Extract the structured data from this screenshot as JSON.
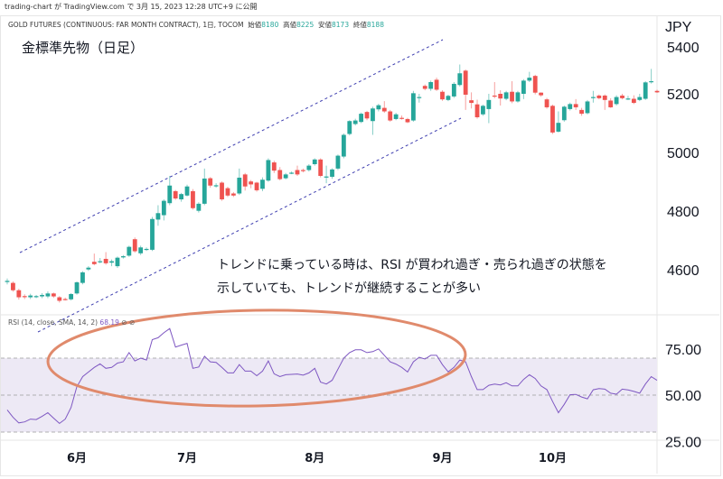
{
  "published": "trading-chart が TradingView.com で 3月 15, 2023 12:28 UTC+9 に公開",
  "symbol": {
    "name": "GOLD FUTURES (CONTINUOUS: FAR MONTH CONTRACT), 1日, TOCOM",
    "open_label": "始値",
    "open": "8180",
    "high_label": "高値",
    "high": "8225",
    "low_label": "安値",
    "low": "8173",
    "close_label": "終値",
    "close": "8188"
  },
  "title": "金標準先物（日足）",
  "annotation": {
    "line1": "トレンドに乗っている時は、RSI が買われ過ぎ・売られ過ぎの状態を",
    "line2": "示していても、トレンドが継続することが多い"
  },
  "rsi_label": {
    "text": "RSI (14, close, SMA, 14, 2)",
    "value": "68.19",
    "icons": "⊘ ⊘"
  },
  "colors": {
    "up": "#26a69a",
    "down": "#ef5350",
    "rsi": "#7e57c2",
    "band": "#ede9f5",
    "trendline": "#3f3fb0",
    "ellipse": "#e08a6c"
  },
  "chart_data": [
    {
      "type": "candlestick",
      "title": "金標準先物（日足）",
      "currency": "JPY",
      "y_ticks": [
        "5400",
        "5200",
        "5000",
        "4800",
        "4600"
      ],
      "ylim": [
        4480,
        5400
      ],
      "x_ticks": [
        "6月",
        "7月",
        "8月",
        "9月",
        "10月"
      ],
      "x_tick_candle_index": [
        12,
        31,
        53,
        75,
        94
      ],
      "candles_ohlc": [
        [
          4558,
          4570,
          4550,
          4562
        ],
        [
          4555,
          4560,
          4525,
          4530
        ],
        [
          4530,
          4535,
          4498,
          4506
        ],
        [
          4510,
          4516,
          4500,
          4508
        ],
        [
          4506,
          4518,
          4500,
          4512
        ],
        [
          4509,
          4514,
          4503,
          4510
        ],
        [
          4509,
          4520,
          4503,
          4514
        ],
        [
          4509,
          4526,
          4503,
          4519
        ],
        [
          4519,
          4522,
          4504,
          4509
        ],
        [
          4506,
          4510,
          4488,
          4494
        ],
        [
          4500,
          4505,
          4495,
          4499
        ],
        [
          4499,
          4520,
          4495,
          4517
        ],
        [
          4519,
          4560,
          4515,
          4557
        ],
        [
          4555,
          4595,
          4550,
          4591
        ],
        [
          4601,
          4612,
          4596,
          4607
        ],
        [
          4627,
          4655,
          4615,
          4619
        ],
        [
          4628,
          4640,
          4622,
          4629
        ],
        [
          4637,
          4660,
          4617,
          4622
        ],
        [
          4624,
          4635,
          4612,
          4629
        ],
        [
          4612,
          4645,
          4606,
          4641
        ],
        [
          4642,
          4650,
          4638,
          4646
        ],
        [
          4648,
          4682,
          4644,
          4678
        ],
        [
          4704,
          4710,
          4658,
          4663
        ],
        [
          4656,
          4682,
          4650,
          4676
        ],
        [
          4670,
          4676,
          4664,
          4671
        ],
        [
          4668,
          4780,
          4664,
          4773
        ],
        [
          4771,
          4820,
          4750,
          4793
        ],
        [
          4786,
          4840,
          4768,
          4835
        ],
        [
          4827,
          4920,
          4820,
          4887
        ],
        [
          4868,
          4872,
          4838,
          4843
        ],
        [
          4840,
          4862,
          4832,
          4858
        ],
        [
          4853,
          4890,
          4850,
          4884
        ],
        [
          4868,
          4875,
          4805,
          4810
        ],
        [
          4801,
          4830,
          4795,
          4825
        ],
        [
          4825,
          4945,
          4820,
          4911
        ],
        [
          4912,
          4916,
          4880,
          4887
        ],
        [
          4887,
          4895,
          4880,
          4888
        ],
        [
          4897,
          4901,
          4835,
          4840
        ],
        [
          4878,
          4883,
          4848,
          4853
        ],
        [
          4860,
          4865,
          4848,
          4853
        ],
        [
          4860,
          4945,
          4855,
          4914
        ],
        [
          4925,
          4930,
          4870,
          4884
        ],
        [
          4901,
          4906,
          4878,
          4891
        ],
        [
          4897,
          4900,
          4866,
          4871
        ],
        [
          4876,
          4915,
          4868,
          4907
        ],
        [
          4904,
          4980,
          4900,
          4974
        ],
        [
          4966,
          4972,
          4930,
          4938
        ],
        [
          4940,
          4950,
          4905,
          4909
        ],
        [
          4912,
          4930,
          4908,
          4925
        ],
        [
          4930,
          4935,
          4926,
          4931
        ],
        [
          4940,
          4955,
          4920,
          4925
        ],
        [
          4940,
          4945,
          4932,
          4937
        ],
        [
          4940,
          4960,
          4935,
          4955
        ],
        [
          4960,
          4980,
          4955,
          4976
        ],
        [
          4976,
          4980,
          4915,
          4920
        ],
        [
          4917,
          4955,
          4895,
          4918
        ],
        [
          4917,
          4946,
          4910,
          4942
        ],
        [
          4945,
          4993,
          4940,
          4989
        ],
        [
          4986,
          5065,
          4980,
          5060
        ],
        [
          5063,
          5110,
          5058,
          5107
        ],
        [
          5097,
          5115,
          5092,
          5109
        ],
        [
          5104,
          5136,
          5100,
          5132
        ],
        [
          5138,
          5142,
          5110,
          5116
        ],
        [
          5107,
          5156,
          5060,
          5150
        ],
        [
          5147,
          5166,
          5140,
          5161
        ],
        [
          5152,
          5175,
          5135,
          5140
        ],
        [
          5140,
          5145,
          5105,
          5109
        ],
        [
          5114,
          5135,
          5110,
          5130
        ],
        [
          5118,
          5126,
          5112,
          5117
        ],
        [
          5114,
          5118,
          5100,
          5103
        ],
        [
          5109,
          5210,
          5105,
          5202
        ],
        [
          5188,
          5200,
          5170,
          5189
        ],
        [
          5227,
          5232,
          5212,
          5217
        ],
        [
          5217,
          5245,
          5210,
          5240
        ],
        [
          5248,
          5255,
          5210,
          5214
        ],
        [
          5207,
          5212,
          5176,
          5181
        ],
        [
          5179,
          5197,
          5175,
          5193
        ],
        [
          5191,
          5240,
          5186,
          5234
        ],
        [
          5230,
          5300,
          5225,
          5270
        ],
        [
          5279,
          5283,
          5145,
          5197
        ],
        [
          5178,
          5205,
          5150,
          5169
        ],
        [
          5164,
          5180,
          5115,
          5120
        ],
        [
          5130,
          5163,
          5125,
          5159
        ],
        [
          5148,
          5200,
          5100,
          5179
        ],
        [
          5194,
          5240,
          5185,
          5191
        ],
        [
          5200,
          5212,
          5160,
          5184
        ],
        [
          5183,
          5210,
          5178,
          5205
        ],
        [
          5207,
          5243,
          5168,
          5174
        ],
        [
          5174,
          5210,
          5170,
          5205
        ],
        [
          5200,
          5250,
          5182,
          5245
        ],
        [
          5245,
          5275,
          5240,
          5255
        ],
        [
          5261,
          5265,
          5198,
          5204
        ],
        [
          5204,
          5205,
          5190,
          5195
        ],
        [
          5181,
          5186,
          5149,
          5154
        ],
        [
          5159,
          5163,
          5063,
          5068
        ],
        [
          5071,
          5140,
          5068,
          5101
        ],
        [
          5110,
          5160,
          5105,
          5156
        ],
        [
          5148,
          5170,
          5143,
          5165
        ],
        [
          5165,
          5182,
          5145,
          5154
        ],
        [
          5145,
          5152,
          5125,
          5132
        ],
        [
          5134,
          5179,
          5130,
          5174
        ],
        [
          5188,
          5210,
          5170,
          5189
        ],
        [
          5194,
          5198,
          5181,
          5185
        ],
        [
          5194,
          5198,
          5145,
          5179
        ],
        [
          5177,
          5185,
          5152,
          5154
        ],
        [
          5165,
          5195,
          5160,
          5189
        ],
        [
          5194,
          5200,
          5181,
          5185
        ],
        [
          5183,
          5193,
          5179,
          5184
        ],
        [
          5183,
          5195,
          5165,
          5169
        ],
        [
          5179,
          5200,
          5175,
          5189
        ],
        [
          5183,
          5243,
          5179,
          5239
        ],
        [
          5242,
          5285,
          5235,
          5243
        ],
        [
          5210,
          5214,
          5203,
          5205
        ]
      ],
      "trendlines": "parallel channel (upper and lower dashed lines)"
    },
    {
      "type": "line",
      "title": "RSI (14, close, SMA, 14, 2)",
      "y_ticks": [
        "75.00",
        "50.00",
        "25.00"
      ],
      "ylim": [
        24,
        92
      ],
      "bands": [
        30,
        50,
        70
      ],
      "rsi": [
        42,
        38,
        35,
        35.5,
        37,
        36.8,
        38.5,
        40.5,
        37.5,
        34.7,
        37,
        43.3,
        54.5,
        60,
        62.5,
        65,
        66.9,
        64.5,
        65,
        67.3,
        68,
        73,
        68.5,
        70,
        69,
        80,
        81,
        83.7,
        86,
        76,
        77,
        78,
        64.5,
        65.2,
        71,
        68,
        67.7,
        65,
        62,
        62,
        66.5,
        63,
        63,
        60.5,
        63,
        68.5,
        61.5,
        60,
        61,
        61.2,
        61.4,
        60.8,
        62,
        64.5,
        57,
        56,
        58,
        64,
        70,
        73,
        74.5,
        74.5,
        73,
        73.5,
        75,
        71.5,
        68,
        66.8,
        65,
        62.5,
        68,
        70.5,
        69.5,
        71.5,
        71.5,
        66.5,
        62.6,
        65,
        69,
        68,
        60,
        53,
        53,
        55.3,
        56,
        55.5,
        56.7,
        55,
        55,
        58.5,
        61,
        59,
        55,
        53,
        46.5,
        40.5,
        45,
        50.2,
        50.4,
        49,
        48,
        52.9,
        53.5,
        53.2,
        51,
        50.5,
        53.2,
        52.8,
        52,
        51,
        56,
        60,
        58
      ]
    }
  ]
}
